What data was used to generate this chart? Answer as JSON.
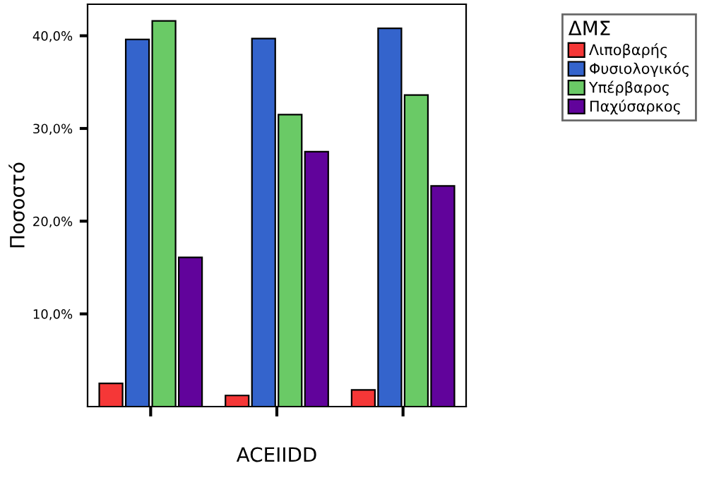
{
  "chart_data": {
    "type": "bar",
    "xlabel": "ACEIIDD",
    "ylabel": "Ποσοστό",
    "legend_title": "ΔΜΣ",
    "categories": [
      null,
      null,
      null
    ],
    "series": [
      {
        "name": "Λιποβαρής",
        "color": "#f53737",
        "values": [
          2.5,
          1.2,
          1.8
        ]
      },
      {
        "name": "Φυσιολογικός",
        "color": "#3464cc",
        "values": [
          39.6,
          39.7,
          40.8
        ]
      },
      {
        "name": "Υπέρβαρος",
        "color": "#6aca66",
        "values": [
          41.6,
          31.5,
          33.6
        ]
      },
      {
        "name": "Παχύσαρκος",
        "color": "#61039b",
        "values": [
          16.1,
          27.5,
          23.8
        ]
      }
    ],
    "ylim": [
      0,
      43.4
    ],
    "yticks": [
      {
        "value": 10,
        "label": "10,0%"
      },
      {
        "value": 20,
        "label": "20,0%"
      },
      {
        "value": 30,
        "label": "30,0%"
      },
      {
        "value": 40,
        "label": "40,0%"
      }
    ],
    "grid": false,
    "legend": "top right"
  }
}
